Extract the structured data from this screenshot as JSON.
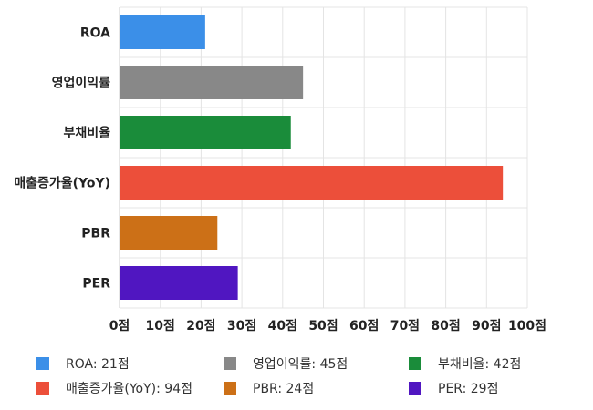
{
  "chart_data": {
    "type": "bar",
    "orientation": "horizontal",
    "categories": [
      "ROA",
      "영업이익률",
      "부채비율",
      "매출증가율(YoY)",
      "PBR",
      "PER"
    ],
    "values": [
      21,
      45,
      42,
      94,
      24,
      29
    ],
    "colors": [
      "#3b8fe8",
      "#888888",
      "#1a8c3a",
      "#ec4f3a",
      "#cc7017",
      "#5016c1"
    ],
    "xlim": [
      0,
      100
    ],
    "x_ticks": [
      0,
      10,
      20,
      30,
      40,
      50,
      60,
      70,
      80,
      90,
      100
    ],
    "x_tick_labels": [
      "0점",
      "10점",
      "20점",
      "30점",
      "40점",
      "50점",
      "60점",
      "70점",
      "80점",
      "90점",
      "100점"
    ],
    "grid": true,
    "legend_position": "bottom",
    "legend": [
      {
        "label": "ROA: 21점",
        "color": "#3b8fe8"
      },
      {
        "label": "영업이익률: 45점",
        "color": "#888888"
      },
      {
        "label": "부채비율: 42점",
        "color": "#1a8c3a"
      },
      {
        "label": "매출증가율(YoY): 94점",
        "color": "#ec4f3a"
      },
      {
        "label": "PBR: 24점",
        "color": "#cc7017"
      },
      {
        "label": "PER: 29점",
        "color": "#5016c1"
      }
    ]
  }
}
